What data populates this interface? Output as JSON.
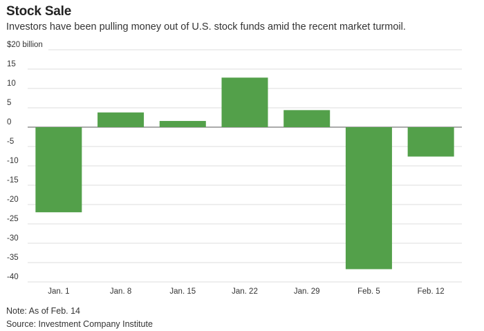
{
  "title": "Stock Sale",
  "subtitle": "Investors have been pulling money out of U.S. stock funds amid the recent market turmoil.",
  "note": "Note: As of Feb. 14",
  "source": "Source: Investment Company Institute",
  "chart_data": {
    "type": "bar",
    "title": "Stock Sale",
    "xlabel": "",
    "ylabel": "$20 billion",
    "categories": [
      "Jan. 1",
      "Jan. 8",
      "Jan. 15",
      "Jan. 22",
      "Jan. 29",
      "Feb. 5",
      "Feb. 12"
    ],
    "values": [
      -22,
      3.8,
      1.6,
      12.8,
      4.4,
      -36.7,
      -7.6
    ],
    "ylim": [
      -40,
      20
    ],
    "yticks": [
      20,
      15,
      10,
      5,
      0,
      -5,
      -10,
      -15,
      -20,
      -25,
      -30,
      -35,
      -40
    ],
    "ytick_labels": [
      "$20 billion",
      "15",
      "10",
      "5",
      "0",
      "-5",
      "-10",
      "-15",
      "-20",
      "-25",
      "-30",
      "-35",
      "-40"
    ],
    "grid": true,
    "bar_color": "#53a04a"
  }
}
